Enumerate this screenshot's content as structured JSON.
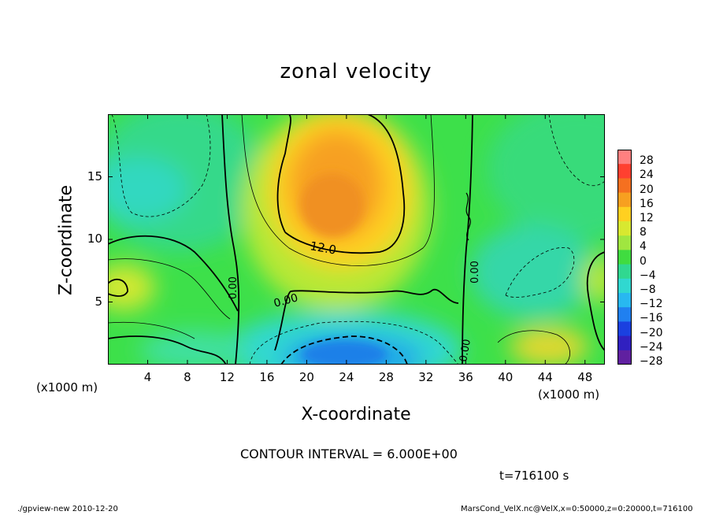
{
  "chart_data": {
    "type": "heatmap",
    "title": "zonal velocity",
    "xlabel": "X-coordinate",
    "ylabel": "Z-coordinate",
    "x_unit_left": "(x1000 m)",
    "x_unit_right": "(x1000 m)",
    "xlim": [
      0,
      50
    ],
    "ylim": [
      0,
      20
    ],
    "x_ticks": [
      "4",
      "8",
      "12",
      "16",
      "20",
      "24",
      "28",
      "32",
      "36",
      "40",
      "44",
      "48"
    ],
    "y_ticks": [
      "5",
      "10",
      "15"
    ],
    "colorbar_labels": [
      "28",
      "24",
      "20",
      "16",
      "12",
      "8",
      "4",
      "0",
      "−4",
      "−8",
      "−12",
      "−16",
      "−20",
      "−24",
      "−28"
    ],
    "contour_labels": [
      "12.0",
      "0.00",
      "0.00",
      "0.00",
      "0.00"
    ],
    "contour_interval_text": "CONTOUR INTERVAL = 6.000E+00",
    "time_text": "t=716100 s",
    "colors": {
      "max": "#ff4040",
      "positive": "#f5a000",
      "neutral": "#2ed82e",
      "negative": "#20d8c8",
      "min": "#4a1a9a"
    }
  },
  "footer": {
    "left": "./gpview-new  2010-12-20",
    "right": "MarsCond_VelX.nc@VelX,x=0:50000,z=0:20000,t=716100"
  }
}
